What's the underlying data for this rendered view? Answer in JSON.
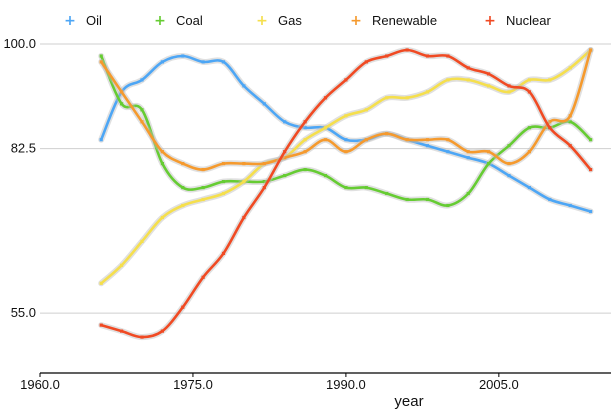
{
  "chart_data": {
    "type": "scatter",
    "title": "",
    "xlabel": "year",
    "ylabel": "",
    "xlim": [
      1960,
      2016
    ],
    "ylim": [
      45,
      100
    ],
    "x_ticks": [
      1960,
      1975,
      1990,
      2005
    ],
    "x_tick_labels": [
      "1960.0",
      "1975.0",
      "1990.0",
      "2005.0"
    ],
    "y_ticks": [
      55,
      82.5,
      100
    ],
    "y_tick_labels": [
      "55.0",
      "82.5",
      "100.0"
    ],
    "grid": "horizontal",
    "legend_position": "top",
    "series": [
      {
        "name": "Oil",
        "color": "#4da6f5",
        "x": [
          1966,
          1968,
          1970,
          1972,
          1974,
          1976,
          1978,
          1980,
          1982,
          1984,
          1986,
          1988,
          1990,
          1992,
          1994,
          1996,
          1998,
          2000,
          2002,
          2004,
          2006,
          2008,
          2010,
          2012,
          2014
        ],
        "y": [
          84,
          92,
          94,
          97,
          98,
          97,
          97,
          93,
          90,
          87,
          86,
          86,
          84,
          84,
          85,
          84,
          83,
          82,
          81,
          80,
          78,
          76,
          74,
          73,
          72
        ]
      },
      {
        "name": "Coal",
        "color": "#66cc33",
        "x": [
          1966,
          1968,
          1970,
          1972,
          1974,
          1976,
          1978,
          1980,
          1982,
          1984,
          1986,
          1988,
          1990,
          1992,
          1994,
          1996,
          1998,
          2000,
          2002,
          2004,
          2006,
          2008,
          2010,
          2012,
          2014
        ],
        "y": [
          98,
          90,
          89,
          80,
          76,
          76,
          77,
          77,
          77,
          78,
          79,
          78,
          76,
          76,
          75,
          74,
          74,
          73,
          75,
          80,
          83,
          86,
          86,
          87,
          84
        ]
      },
      {
        "name": "Gas",
        "color": "#f5df4d",
        "x": [
          1966,
          1968,
          1970,
          1972,
          1974,
          1976,
          1978,
          1980,
          1982,
          1984,
          1986,
          1988,
          1990,
          1992,
          1994,
          1996,
          1998,
          2000,
          2002,
          2004,
          2006,
          2008,
          2010,
          2012,
          2014
        ],
        "y": [
          60,
          63,
          67,
          71,
          73,
          74,
          75,
          77,
          80,
          81,
          84,
          86,
          88,
          89,
          91,
          91,
          92,
          94,
          94,
          93,
          92,
          94,
          94,
          96,
          99
        ]
      },
      {
        "name": "Renewable",
        "color": "#f59a2e",
        "x": [
          1966,
          1968,
          1970,
          1972,
          1974,
          1976,
          1978,
          1980,
          1982,
          1984,
          1986,
          1988,
          1990,
          1992,
          1994,
          1996,
          1998,
          2000,
          2002,
          2004,
          2006,
          2008,
          2010,
          2012,
          2014
        ],
        "y": [
          97,
          92,
          87,
          82,
          80,
          79,
          80,
          80,
          80,
          81,
          82,
          84,
          82,
          84,
          85,
          84,
          84,
          84,
          82,
          82,
          80,
          82,
          87,
          88,
          99
        ]
      },
      {
        "name": "Nuclear",
        "color": "#f04a23",
        "x": [
          1966,
          1968,
          1970,
          1972,
          1974,
          1976,
          1978,
          1980,
          1982,
          1984,
          1986,
          1988,
          1990,
          1992,
          1994,
          1996,
          1998,
          2000,
          2002,
          2004,
          2006,
          2008,
          2010,
          2012,
          2014
        ],
        "y": [
          53,
          52,
          51,
          52,
          56,
          61,
          65,
          71,
          76,
          82,
          87,
          91,
          94,
          97,
          98,
          99,
          98,
          98,
          96,
          95,
          93,
          92,
          86,
          83,
          79
        ]
      }
    ]
  }
}
